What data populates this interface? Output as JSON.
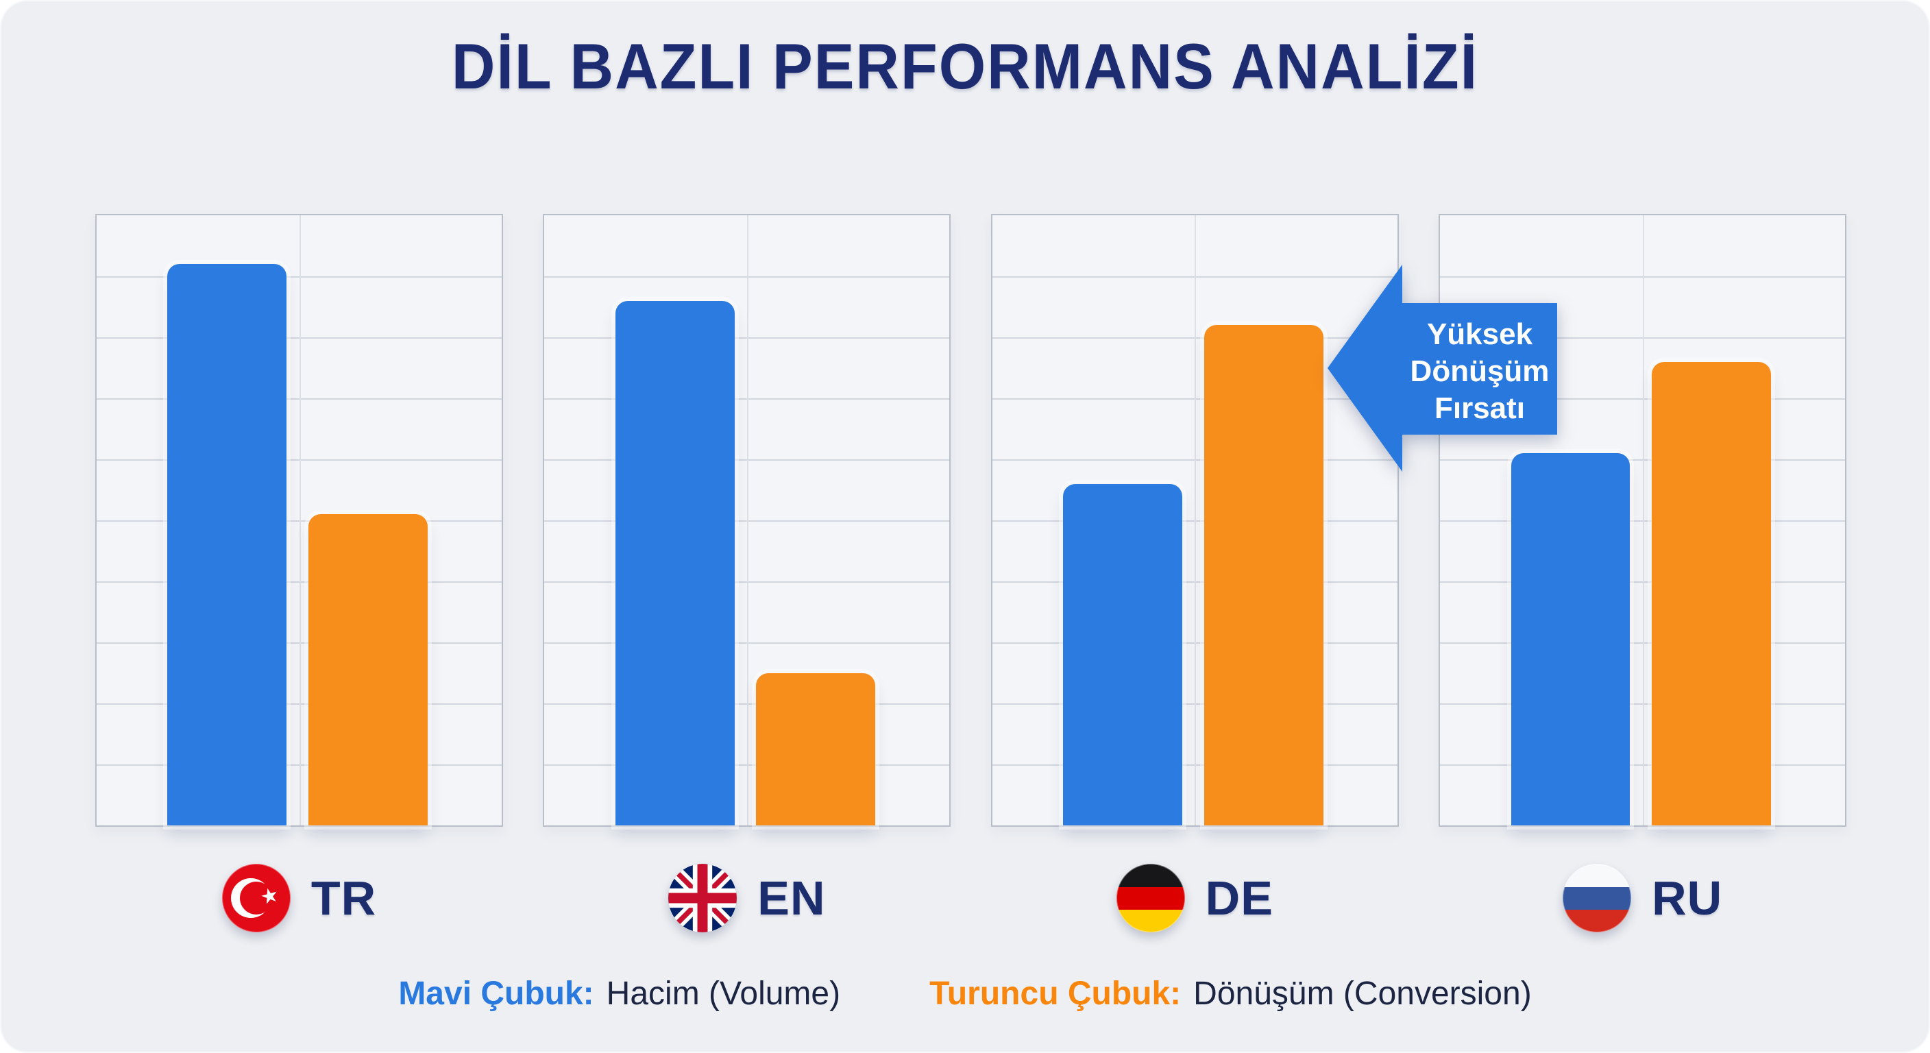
{
  "title": "DİL BAZLI PERFORMANS ANALİZİ",
  "colors": {
    "blue": "#2B7BE0",
    "orange": "#F78E1C",
    "navy": "#1D2B70",
    "canvas_bg": "#EDEFF3",
    "panel_bg": "#F4F5F8",
    "grid": "#D2D6DE",
    "panel_border": "#B9BFC9",
    "annotation_blue": "#2878DE"
  },
  "chart_data": {
    "type": "bar",
    "title": "DİL BAZLI PERFORMANS ANALİZİ",
    "categories": [
      "TR",
      "EN",
      "DE",
      "RU"
    ],
    "flags": {
      "TR": "turkey",
      "EN": "united-kingdom",
      "DE": "germany",
      "RU": "russia"
    },
    "series": [
      {
        "name": "Hacim (Volume)",
        "color": "#2B7BE0",
        "values": [
          92,
          86,
          56,
          61
        ]
      },
      {
        "name": "Dönüşüm (Conversion)",
        "color": "#F78E1C",
        "values": [
          51,
          25,
          82,
          76
        ]
      }
    ],
    "ylim": [
      0,
      100
    ],
    "grid": true,
    "grid_rows": 10,
    "legend_position": "bottom",
    "annotation": {
      "text": "Yüksek Dönüşüm Fırsatı",
      "lines": [
        "Yüksek",
        "Dönüşüm",
        "Fırsatı"
      ],
      "points_to": "DE conversion bar",
      "shape": "left-arrow"
    }
  },
  "legend": {
    "blue_label": "Mavi Çubuk:",
    "blue_text": "Hacim (Volume)",
    "orange_label": "Turuncu Çubuk:",
    "orange_text": "Dönüşüm (Conversion)"
  }
}
